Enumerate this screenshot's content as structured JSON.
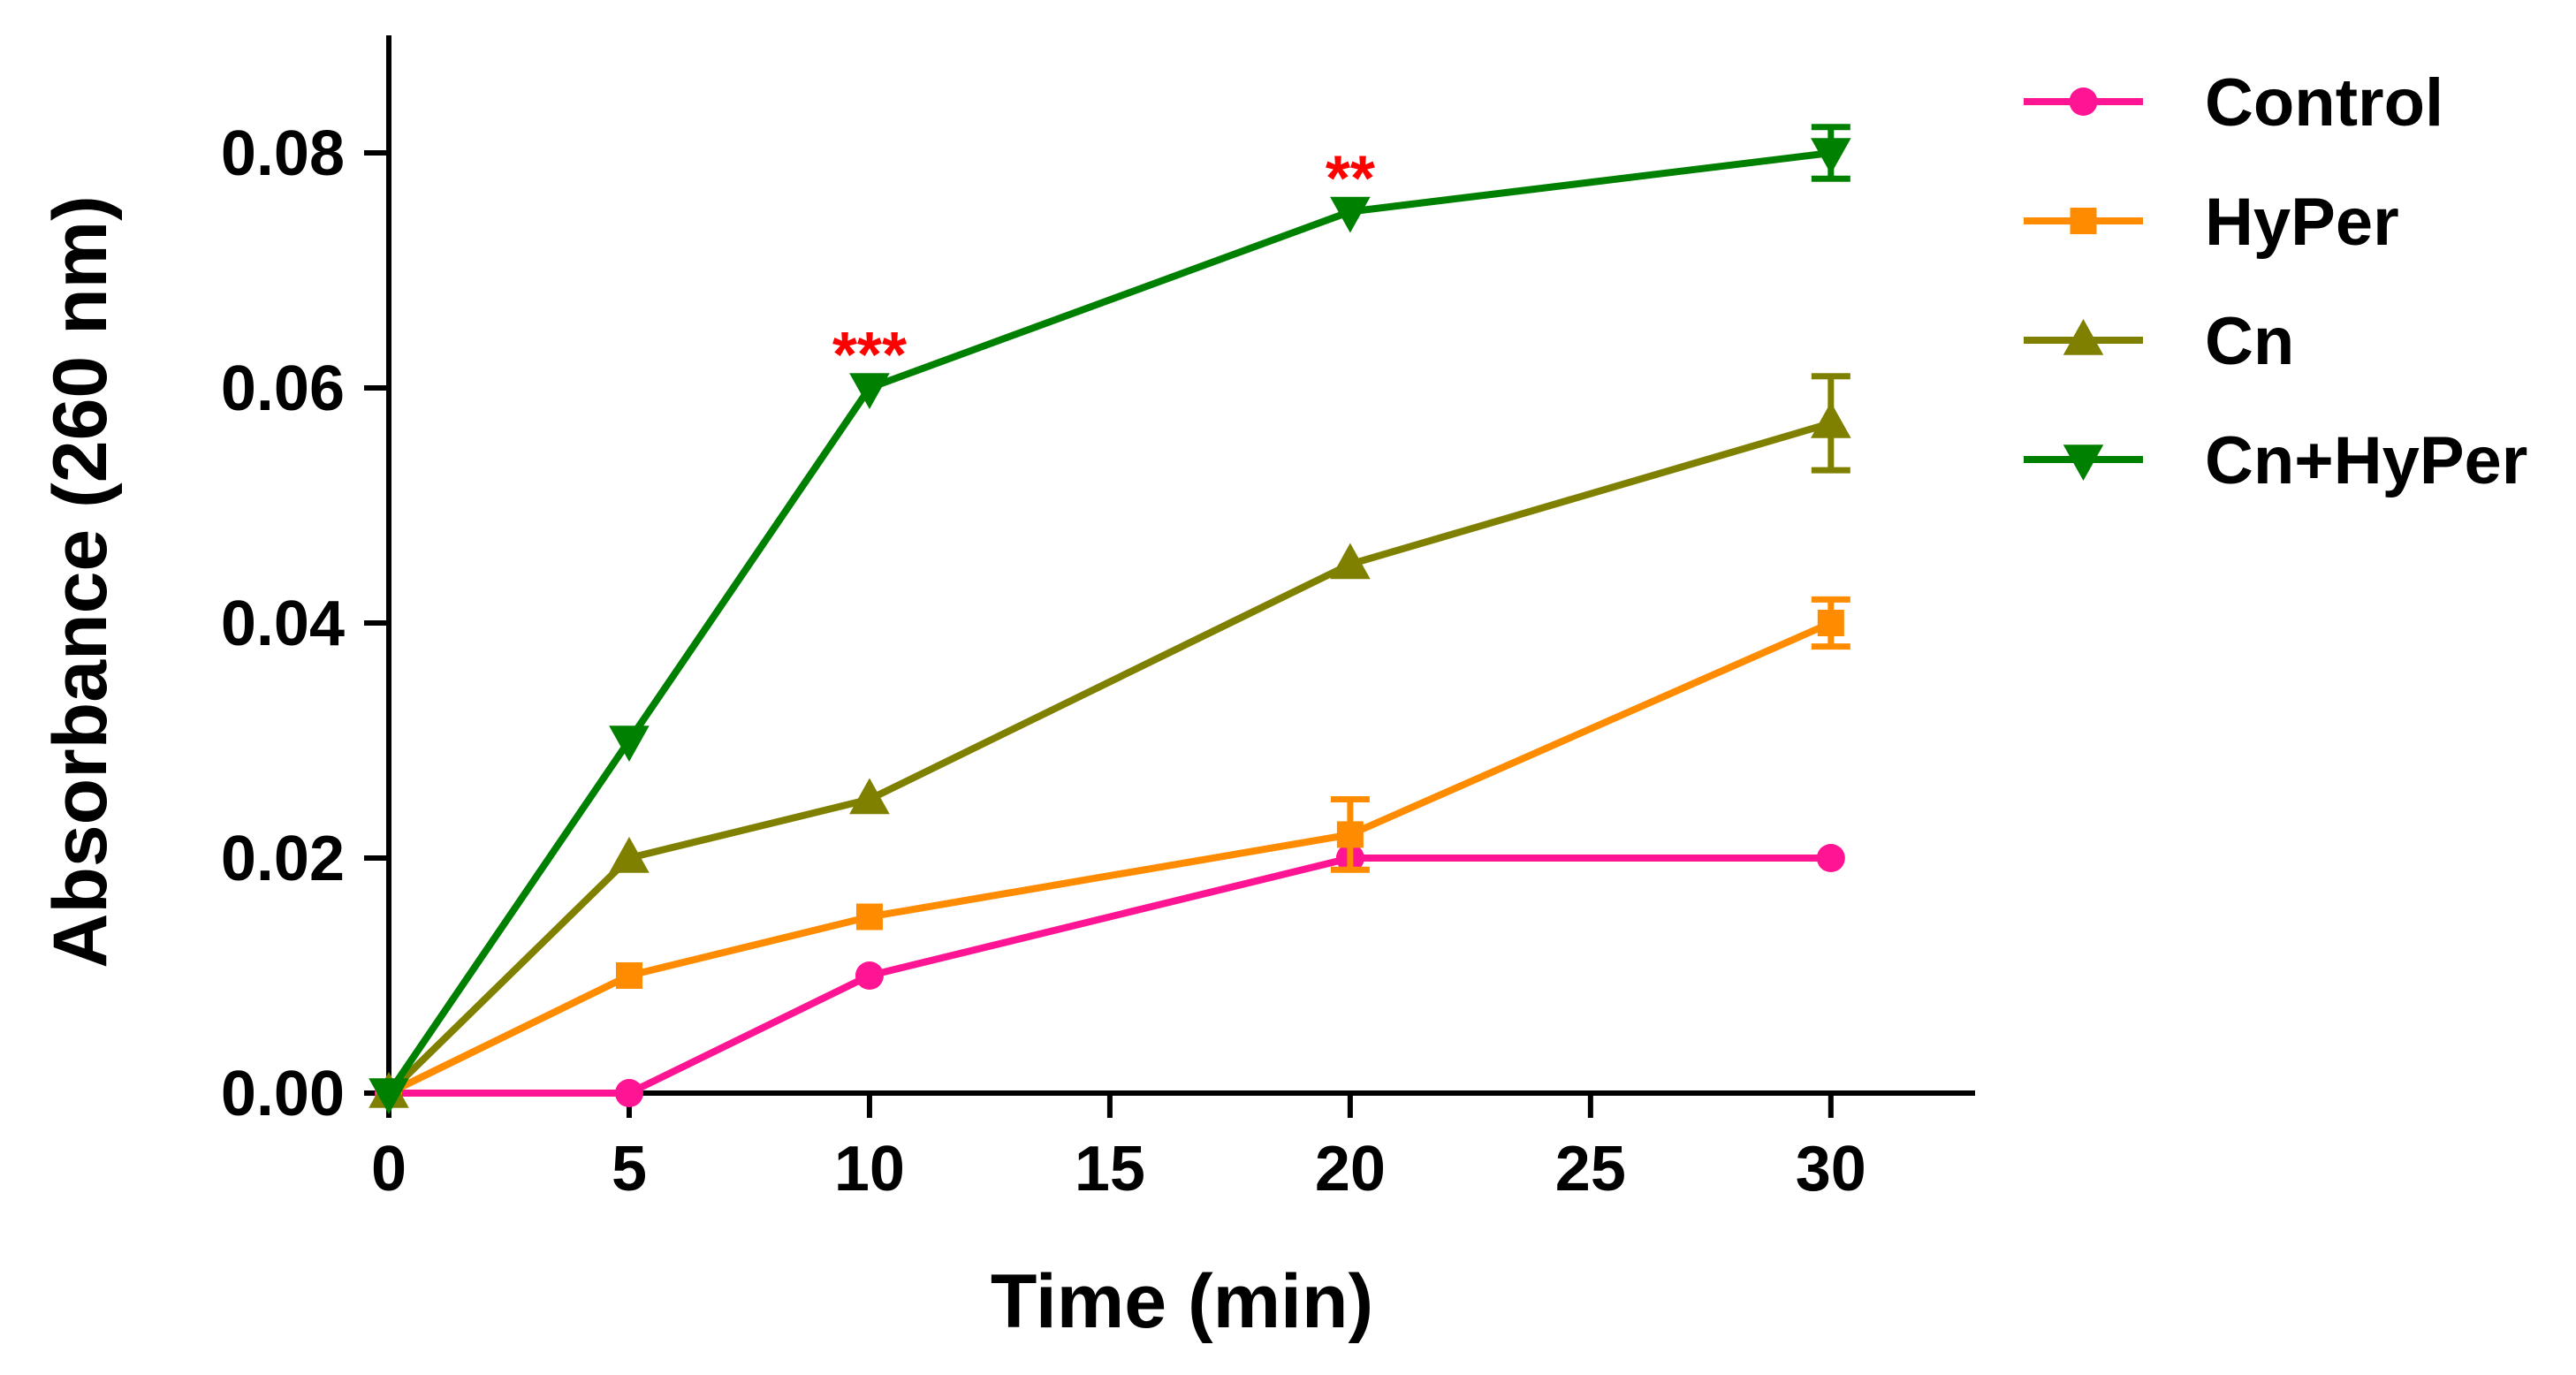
{
  "chart_data": {
    "type": "line",
    "title": "",
    "xlabel": "Time (min)",
    "ylabel": "Absorbance (260 nm)",
    "xlim": [
      0,
      33
    ],
    "ylim": [
      0,
      0.09
    ],
    "xticks": [
      0,
      5,
      10,
      15,
      20,
      25,
      30
    ],
    "xtick_labels": [
      "0",
      "5",
      "10",
      "15",
      "20",
      "25",
      "30"
    ],
    "yticks": [
      0,
      0.02,
      0.04,
      0.06,
      0.08
    ],
    "ytick_labels": [
      "0.00",
      "0.02",
      "0.04",
      "0.06",
      "0.08"
    ],
    "grid": false,
    "legend_position": "top-right outside",
    "x": [
      0,
      5,
      10,
      20,
      30
    ],
    "series": [
      {
        "name": "Control",
        "color": "#ff1493",
        "marker": "circle",
        "values": [
          0,
          0,
          0.01,
          0.02,
          0.02
        ],
        "errors": [
          0,
          0,
          0,
          0,
          0
        ]
      },
      {
        "name": "HyPer",
        "color": "#ff8c00",
        "marker": "square",
        "values": [
          0,
          0.01,
          0.015,
          0.022,
          0.04
        ],
        "errors": [
          0,
          0,
          0,
          0.003,
          0.002
        ]
      },
      {
        "name": "Cn",
        "color": "#808000",
        "marker": "triangle-up",
        "values": [
          0,
          0.02,
          0.025,
          0.045,
          0.057
        ],
        "errors": [
          0,
          0,
          0,
          0,
          0.004
        ]
      },
      {
        "name": "Cn+HyPer",
        "color": "#008000",
        "marker": "triangle-down",
        "values": [
          0,
          0.03,
          0.06,
          0.075,
          0.08
        ],
        "errors": [
          0,
          0,
          0,
          0,
          0.0022
        ]
      }
    ],
    "annotations": [
      {
        "text": "***",
        "x": 10,
        "y": 0.064,
        "color": "#ff0000"
      },
      {
        "text": "**",
        "x": 20,
        "y": 0.079,
        "color": "#ff0000"
      }
    ]
  }
}
